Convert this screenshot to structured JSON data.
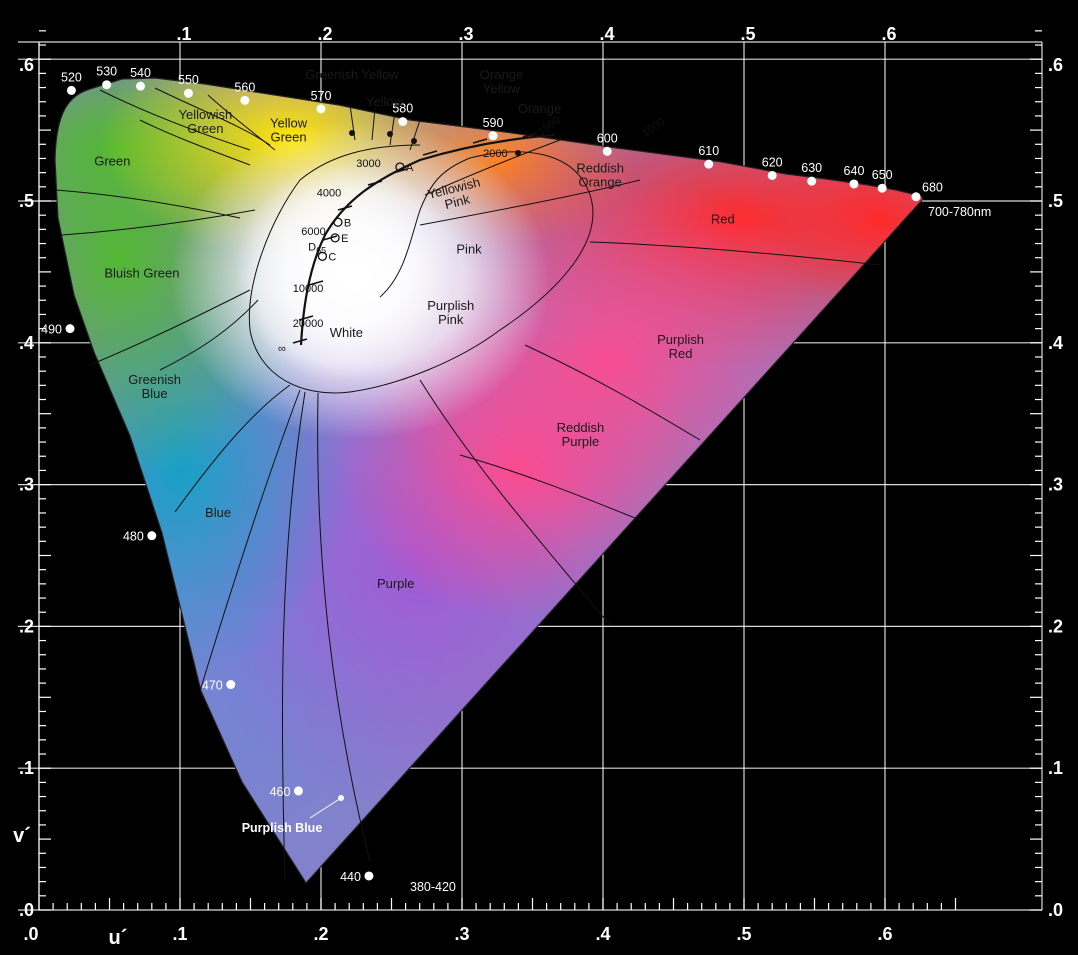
{
  "axes": {
    "x_name": "u´",
    "y_name": "v´",
    "x_ticks": [
      ".0",
      ".1",
      ".2",
      ".3",
      ".4",
      ".5",
      ".6"
    ],
    "y_ticks": [
      ".0",
      ".1",
      ".2",
      ".3",
      ".4",
      ".5",
      ".6"
    ],
    "top_ticks": [
      ".1",
      ".2",
      ".3",
      ".4",
      ".5",
      ".6"
    ],
    "right_ticks": [
      ".0",
      ".1",
      ".2",
      ".3",
      ".4",
      ".5",
      ".6"
    ]
  },
  "wavelengths": [
    {
      "label": "520",
      "u": 0.023,
      "v": 0.578
    },
    {
      "label": "530",
      "u": 0.048,
      "v": 0.582
    },
    {
      "label": "540",
      "u": 0.072,
      "v": 0.581
    },
    {
      "label": "550",
      "u": 0.106,
      "v": 0.576
    },
    {
      "label": "560",
      "u": 0.146,
      "v": 0.571
    },
    {
      "label": "570",
      "u": 0.2,
      "v": 0.565
    },
    {
      "label": "580",
      "u": 0.258,
      "v": 0.556
    },
    {
      "label": "590",
      "u": 0.322,
      "v": 0.546
    },
    {
      "label": "600",
      "u": 0.403,
      "v": 0.535
    },
    {
      "label": "610",
      "u": 0.475,
      "v": 0.526
    },
    {
      "label": "620",
      "u": 0.52,
      "v": 0.518
    },
    {
      "label": "630",
      "u": 0.548,
      "v": 0.514
    },
    {
      "label": "640",
      "u": 0.578,
      "v": 0.512
    },
    {
      "label": "650",
      "u": 0.598,
      "v": 0.509
    },
    {
      "label": "680",
      "u": 0.622,
      "v": 0.503
    },
    {
      "label": "490",
      "u": 0.022,
      "v": 0.41
    },
    {
      "label": "480",
      "u": 0.08,
      "v": 0.264
    },
    {
      "label": "470",
      "u": 0.136,
      "v": 0.159
    },
    {
      "label": "460",
      "u": 0.184,
      "v": 0.084
    },
    {
      "label": "440",
      "u": 0.234,
      "v": 0.024
    }
  ],
  "extra_labels": {
    "red_end": "700-780nm",
    "blue_end": "380-420",
    "purplish_blue": "Purplish Blue"
  },
  "regions": [
    {
      "lines": [
        "Green"
      ],
      "u": 0.052,
      "v": 0.525,
      "light": false
    },
    {
      "lines": [
        "Yellowish",
        "Green"
      ],
      "u": 0.118,
      "v": 0.558,
      "light": false
    },
    {
      "lines": [
        "Yellow",
        "Green"
      ],
      "u": 0.177,
      "v": 0.552,
      "light": false
    },
    {
      "lines": [
        "Greenish Yellow"
      ],
      "u": 0.222,
      "v": 0.586,
      "light": false
    },
    {
      "lines": [
        "Yellow"
      ],
      "u": 0.245,
      "v": 0.567,
      "light": false
    },
    {
      "lines": [
        "Orange",
        "Yellow"
      ],
      "u": 0.328,
      "v": 0.586,
      "light": false
    },
    {
      "lines": [
        "Orange"
      ],
      "u": 0.355,
      "v": 0.562,
      "light": false
    },
    {
      "lines": [
        "Reddish",
        "Orange"
      ],
      "u": 0.398,
      "v": 0.52,
      "light": false
    },
    {
      "lines": [
        "Yellowish",
        "Pink"
      ],
      "u": 0.295,
      "v": 0.506,
      "light": false
    },
    {
      "lines": [
        "Pink"
      ],
      "u": 0.305,
      "v": 0.463,
      "light": false
    },
    {
      "lines": [
        "Red"
      ],
      "u": 0.485,
      "v": 0.484,
      "light": false
    },
    {
      "lines": [
        "Bluish Green"
      ],
      "u": 0.073,
      "v": 0.446,
      "light": false
    },
    {
      "lines": [
        "Purplish",
        "Pink"
      ],
      "u": 0.292,
      "v": 0.423,
      "light": false
    },
    {
      "lines": [
        "White"
      ],
      "u": 0.218,
      "v": 0.404,
      "light": false
    },
    {
      "lines": [
        "Purplish",
        "Red"
      ],
      "u": 0.455,
      "v": 0.399,
      "light": false
    },
    {
      "lines": [
        "Greenish",
        "Blue"
      ],
      "u": 0.082,
      "v": 0.371,
      "light": false
    },
    {
      "lines": [
        "Reddish",
        "Purple"
      ],
      "u": 0.384,
      "v": 0.337,
      "light": false
    },
    {
      "lines": [
        "Blue"
      ],
      "u": 0.127,
      "v": 0.277,
      "light": false
    },
    {
      "lines": [
        "Purple"
      ],
      "u": 0.253,
      "v": 0.227,
      "light": false
    }
  ],
  "planckian": {
    "temps": [
      {
        "label": "1000",
        "u": 0.43,
        "v": 0.545
      },
      {
        "label": "1500",
        "u": 0.356,
        "v": 0.546
      },
      {
        "label": "2000",
        "u": 0.315,
        "v": 0.531
      },
      {
        "label": "3000",
        "u": 0.225,
        "v": 0.524
      },
      {
        "label": "4000",
        "u": 0.197,
        "v": 0.503
      },
      {
        "label": "6000",
        "u": 0.186,
        "v": 0.476
      },
      {
        "label": "10000",
        "u": 0.18,
        "v": 0.436
      },
      {
        "label": "20000",
        "u": 0.18,
        "v": 0.411
      }
    ],
    "infinity": "∞",
    "points": [
      {
        "label": "A",
        "u": 0.256,
        "v": 0.524
      },
      {
        "label": "B",
        "u": 0.212,
        "v": 0.485
      },
      {
        "label": "E",
        "u": 0.21,
        "v": 0.474
      },
      {
        "label": "D65",
        "u": 0.198,
        "v": 0.468
      },
      {
        "label": "C",
        "u": 0.201,
        "v": 0.461
      }
    ]
  }
}
